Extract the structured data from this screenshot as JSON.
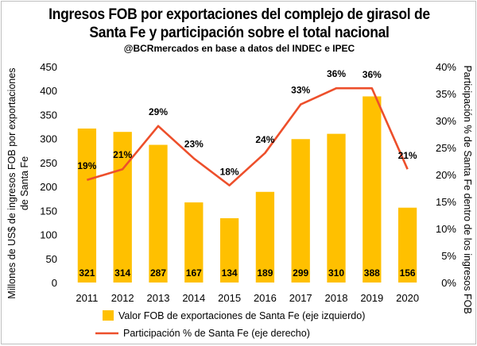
{
  "chart_data": {
    "type": "bar",
    "title_line1": "Ingresos FOB por exportaciones del complejo de girasol de",
    "title_line2": "Santa Fe y participación sobre el total nacional",
    "subtitle": "@BCRmercados en base a datos del INDEC e IPEC",
    "categories": [
      "2011",
      "2012",
      "2013",
      "2014",
      "2015",
      "2016",
      "2017",
      "2018",
      "2019",
      "2020"
    ],
    "series": [
      {
        "name": "Valor FOB de exportaciones de Santa Fe (eje izquierdo)",
        "type": "bar",
        "axis": "left",
        "color": "#FFC000",
        "values": [
          321,
          314,
          287,
          167,
          134,
          189,
          299,
          310,
          388,
          156
        ],
        "labels": [
          "321",
          "314",
          "287",
          "167",
          "134",
          "189",
          "299",
          "310",
          "388",
          "156"
        ]
      },
      {
        "name": "Participación % de Santa Fe (eje derecho)",
        "type": "line",
        "axis": "right",
        "color": "#ED4F2B",
        "values": [
          19,
          21,
          29,
          23,
          18,
          24,
          33,
          36,
          36,
          21
        ],
        "labels": [
          "19%",
          "21%",
          "29%",
          "23%",
          "18%",
          "24%",
          "33%",
          "36%",
          "36%",
          "21%"
        ]
      }
    ],
    "ylabel_left": "Millones de US$ de ingresos FOB por exportaciones de Santa Fe",
    "ylabel_left_line1": "Millones de US$ de ingresos FOB por exportaciones",
    "ylabel_left_line2": "de Santa Fe",
    "ylabel_right": "Participación % de Santa Fe dentro de los ingresos FOB",
    "ylim_left": [
      0,
      450
    ],
    "yticks_left": [
      "0",
      "50",
      "100",
      "150",
      "200",
      "250",
      "300",
      "350",
      "400",
      "450"
    ],
    "ylim_right": [
      0,
      40
    ],
    "yticks_right": [
      "0%",
      "5%",
      "10%",
      "15%",
      "20%",
      "25%",
      "30%",
      "35%",
      "40%"
    ],
    "grid": false,
    "legend_position": "bottom"
  }
}
